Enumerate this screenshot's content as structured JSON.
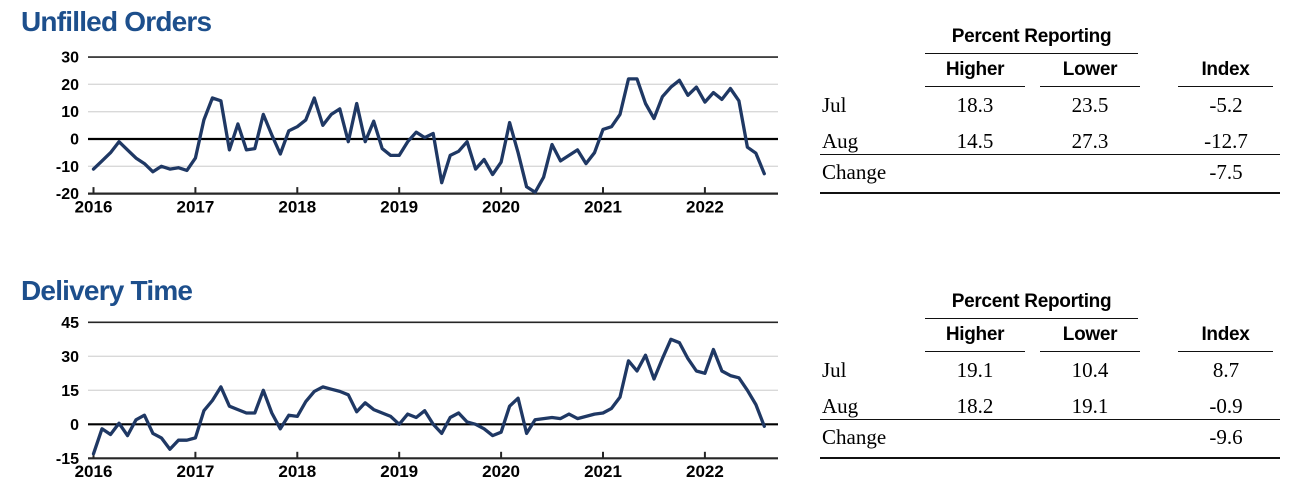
{
  "colors": {
    "line": "#1f3864",
    "title_blue": "#1d4f8c",
    "gridline": "#d9d9d9",
    "axis": "#262626",
    "zero_line": "#000000",
    "table_rule": "#111111"
  },
  "chart_data": [
    {
      "type": "line",
      "title": "Unfilled Orders",
      "frequency": "monthly",
      "x_start": "2016-01",
      "x_end": "2022-08",
      "xticklabels": [
        "2016",
        "2017",
        "2018",
        "2019",
        "2020",
        "2021",
        "2022"
      ],
      "yticks": [
        30,
        20,
        10,
        0,
        -10,
        -20
      ],
      "ylim": [
        -20,
        30
      ],
      "grid": "horizontal-light",
      "legend": "none",
      "series": [
        {
          "name": "Unfilled Orders diffusion index",
          "values": [
            -11,
            -8,
            -5,
            -1,
            -4,
            -7,
            -9,
            -12,
            -10,
            -11,
            -10.5,
            -11.5,
            -7,
            7,
            15,
            14,
            -4,
            5.5,
            -4,
            -3.5,
            9,
            1.5,
            -5.5,
            3,
            4.5,
            7,
            15,
            5,
            9,
            11,
            -1,
            13,
            -1,
            6.5,
            -3.5,
            -6,
            -6,
            -1,
            2.5,
            0.5,
            2,
            -16,
            -6,
            -4.5,
            -1,
            -11,
            -7.5,
            -13,
            -8.5,
            6,
            -5,
            -17.5,
            -19.5,
            -14,
            -2,
            -8,
            -6,
            -4,
            -9,
            -5,
            3.5,
            4.5,
            9,
            22,
            22,
            13,
            7.5,
            15.5,
            19,
            21.5,
            16,
            19,
            13.5,
            17,
            14.5,
            18.5,
            14,
            -3,
            -5.2,
            -12.7
          ]
        }
      ]
    },
    {
      "type": "line",
      "title": "Delivery Time",
      "frequency": "monthly",
      "x_start": "2016-01",
      "x_end": "2022-08",
      "xticklabels": [
        "2016",
        "2017",
        "2018",
        "2019",
        "2020",
        "2021",
        "2022"
      ],
      "yticks": [
        45,
        30,
        15,
        0,
        -15
      ],
      "ylim": [
        -15,
        45
      ],
      "grid": "horizontal-light",
      "legend": "none",
      "series": [
        {
          "name": "Delivery Time diffusion index",
          "values": [
            -13,
            -2,
            -4.5,
            0.5,
            -5,
            2,
            4,
            -4,
            -6,
            -11,
            -7,
            -7,
            -6,
            6,
            10.5,
            16.5,
            8,
            6.5,
            5,
            5,
            15,
            5,
            -2,
            4,
            3.5,
            10,
            14.5,
            16.5,
            15.5,
            14.5,
            13,
            5.5,
            9.5,
            6.5,
            5,
            3.5,
            0,
            4.5,
            3,
            6,
            0,
            -4,
            3,
            5,
            1,
            0,
            -2,
            -5,
            -3.5,
            8,
            11.5,
            -4,
            2,
            2.5,
            3,
            2.5,
            4.5,
            2.5,
            3.5,
            4.5,
            5,
            7,
            12,
            28,
            23.5,
            30.5,
            20,
            29,
            37.5,
            36,
            29,
            23.5,
            22.5,
            33,
            23.5,
            21.5,
            20.5,
            15,
            8.7,
            -0.9
          ]
        }
      ]
    }
  ],
  "tables": [
    {
      "group_header": "Percent Reporting",
      "columns": [
        "Higher",
        "Lower",
        "Index"
      ],
      "rows": [
        {
          "label": "Jul",
          "higher": "18.3",
          "lower": "23.5",
          "index": "-5.2"
        },
        {
          "label": "Aug",
          "higher": "14.5",
          "lower": "27.3",
          "index": "-12.7"
        },
        {
          "label": "Change",
          "higher": "",
          "lower": "",
          "index": "-7.5"
        }
      ]
    },
    {
      "group_header": "Percent Reporting",
      "columns": [
        "Higher",
        "Lower",
        "Index"
      ],
      "rows": [
        {
          "label": "Jul",
          "higher": "19.1",
          "lower": "10.4",
          "index": "8.7"
        },
        {
          "label": "Aug",
          "higher": "18.2",
          "lower": "19.1",
          "index": "-0.9"
        },
        {
          "label": "Change",
          "higher": "",
          "lower": "",
          "index": "-9.6"
        }
      ]
    }
  ]
}
